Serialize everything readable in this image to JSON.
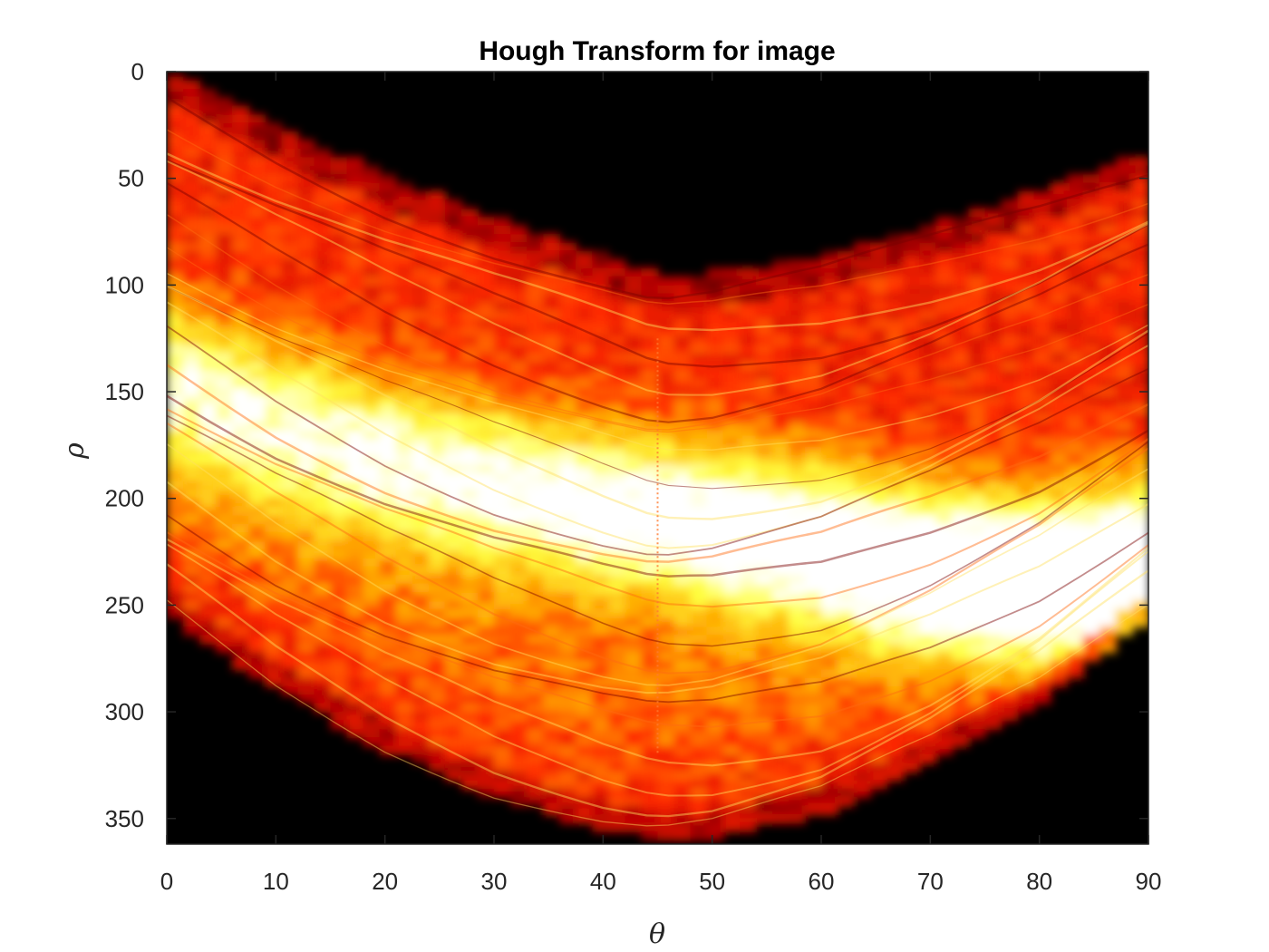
{
  "chart_data": {
    "type": "heatmap",
    "title": "Hough Transform for image",
    "xlabel": "θ",
    "ylabel": "ρ",
    "xlim": [
      0,
      90
    ],
    "ylim": [
      0,
      362
    ],
    "y_axis_reversed": true,
    "xticks": [
      0,
      10,
      20,
      30,
      40,
      50,
      60,
      70,
      80,
      90
    ],
    "yticks": [
      0,
      50,
      100,
      150,
      200,
      250,
      300,
      350
    ],
    "colormap": "hot",
    "colormap_stops": [
      "#000000",
      "#b40000",
      "#ff2a00",
      "#ffaa00",
      "#ffff40",
      "#ffffff"
    ],
    "grid": false,
    "legend": "none",
    "envelope": {
      "theta": [
        0,
        10,
        20,
        30,
        40,
        45,
        50,
        60,
        70,
        80,
        90
      ],
      "rho_min": [
        0,
        25,
        48,
        68,
        86,
        95,
        94,
        86,
        72,
        56,
        37
      ],
      "rho_max": [
        255,
        290,
        318,
        340,
        355,
        360,
        359,
        348,
        325,
        295,
        255
      ]
    },
    "bright_band": {
      "theta": [
        0,
        10,
        20,
        30,
        40,
        50,
        60,
        70,
        80,
        90
      ],
      "rho": [
        145,
        165,
        182,
        195,
        205,
        215,
        222,
        232,
        240,
        238
      ]
    }
  }
}
